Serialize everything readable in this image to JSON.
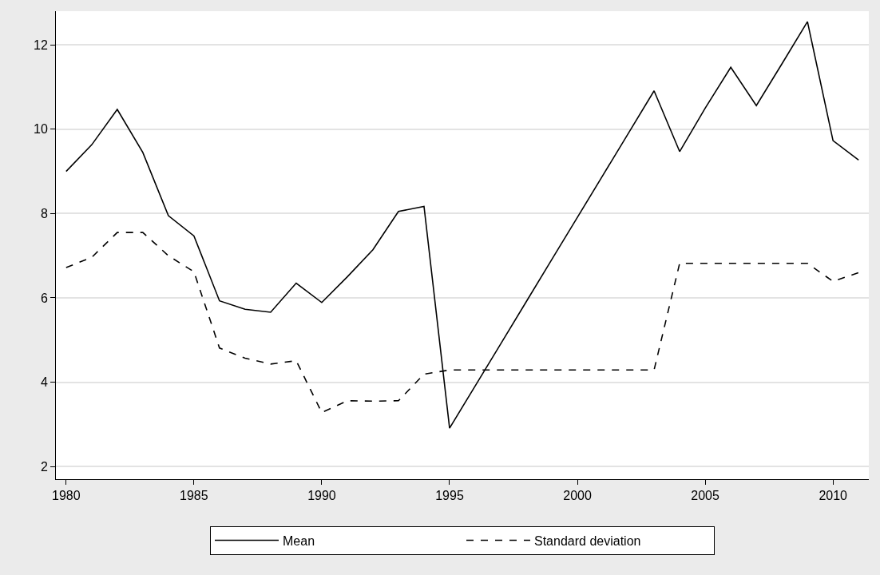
{
  "chart_data": {
    "type": "line",
    "x": [
      1980,
      1981,
      1982,
      1983,
      1984,
      1985,
      1986,
      1987,
      1988,
      1989,
      1990,
      1991,
      1992,
      1993,
      1994,
      1995,
      1996,
      1997,
      1998,
      1999,
      2000,
      2001,
      2002,
      2003,
      2004,
      2005,
      2006,
      2007,
      2008,
      2009,
      2010,
      2011
    ],
    "series": [
      {
        "name": "Mean",
        "color": "#000000",
        "line_style": "solid",
        "values": [
          9.0,
          9.63,
          10.47,
          9.45,
          7.95,
          7.47,
          5.93,
          5.73,
          5.66,
          6.35,
          5.89,
          6.5,
          7.14,
          8.05,
          8.17,
          2.91,
          3.91,
          4.91,
          5.91,
          6.91,
          7.91,
          8.91,
          9.91,
          10.91,
          9.47,
          10.5,
          11.47,
          10.56,
          11.55,
          12.55,
          9.73,
          9.27
        ]
      },
      {
        "name": "Standard deviation",
        "color": "#000000",
        "line_style": "dashed",
        "values": [
          6.72,
          6.96,
          7.55,
          7.55,
          7.0,
          6.62,
          4.81,
          4.57,
          4.43,
          4.51,
          3.28,
          3.56,
          3.55,
          3.56,
          4.19,
          4.29,
          4.29,
          4.29,
          4.29,
          4.29,
          4.29,
          4.29,
          4.29,
          4.29,
          6.82,
          6.82,
          6.82,
          6.82,
          6.82,
          6.82,
          6.39,
          6.6
        ]
      }
    ],
    "xlim": [
      1979.6,
      2011.4
    ],
    "xticks": [
      1980,
      1985,
      1990,
      1995,
      2000,
      2005,
      2010
    ],
    "ylim": [
      1.7,
      12.8
    ],
    "yticks": [
      2,
      4,
      6,
      8,
      10,
      12
    ],
    "grid": "y",
    "legend": "bottom",
    "marker": "none"
  }
}
